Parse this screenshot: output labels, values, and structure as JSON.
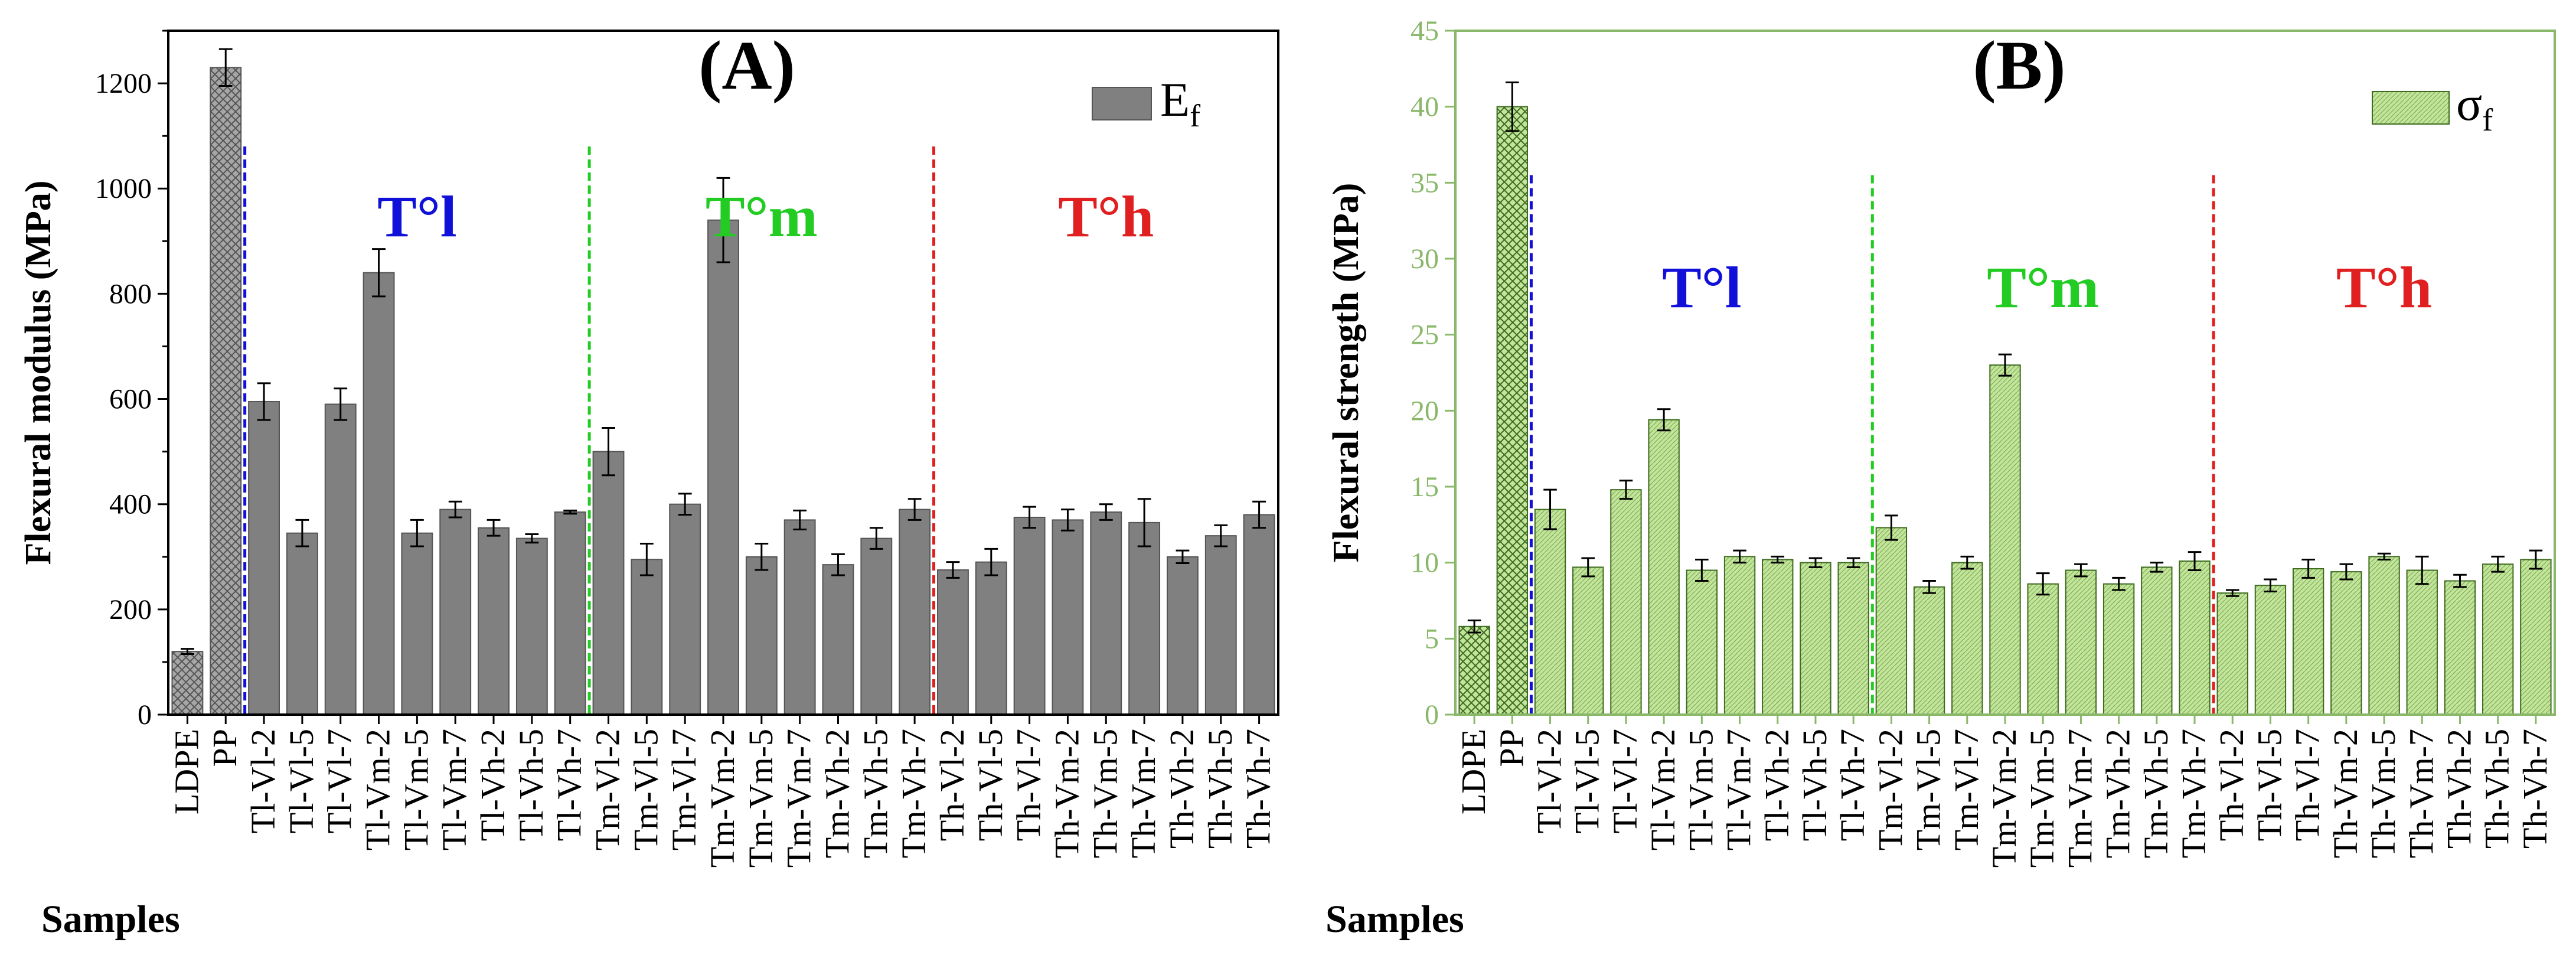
{
  "chart_data": [
    {
      "type": "bar",
      "panel": "(A)",
      "title": "(A)",
      "xlabel": "Samples",
      "ylabel": "Flexural modulus (MPa)",
      "ylim": [
        0,
        1300
      ],
      "yticks": [
        "0",
        "200",
        "400",
        "600",
        "800",
        "1000",
        "1200"
      ],
      "legend": {
        "label_main": "E",
        "label_sub": "f",
        "placement": "top-right"
      },
      "bar_color": "#808080",
      "hatched_bar_color": "#a6a6a6",
      "categories": [
        "LDPE",
        "PP",
        "Tl-Vl-2",
        "Tl-Vl-5",
        "Tl-Vl-7",
        "Tl-Vm-2",
        "Tl-Vm-5",
        "Tl-Vm-7",
        "Tl-Vh-2",
        "Tl-Vh-5",
        "Tl-Vh-7",
        "Tm-Vl-2",
        "Tm-Vl-5",
        "Tm-Vl-7",
        "Tm-Vm-2",
        "Tm-Vm-5",
        "Tm-Vm-7",
        "Tm-Vh-2",
        "Tm-Vh-5",
        "Tm-Vh-7",
        "Th-Vl-2",
        "Th-Vl-5",
        "Th-Vl-7",
        "Th-Vm-2",
        "Th-Vm-5",
        "Th-Vm-7",
        "Th-Vh-2",
        "Th-Vh-5",
        "Th-Vh-7"
      ],
      "values": [
        120,
        1230,
        595,
        345,
        590,
        840,
        345,
        390,
        355,
        335,
        385,
        500,
        295,
        400,
        940,
        300,
        370,
        285,
        335,
        390,
        275,
        290,
        375,
        370,
        385,
        365,
        300,
        340,
        380
      ],
      "errors": [
        5,
        35,
        35,
        25,
        30,
        45,
        25,
        15,
        15,
        8,
        3,
        45,
        30,
        20,
        80,
        25,
        18,
        20,
        20,
        20,
        15,
        25,
        20,
        20,
        15,
        45,
        12,
        20,
        25
      ],
      "hatched": [
        0,
        1
      ],
      "regions": [
        {
          "label": "T°l",
          "color": "#1010d8"
        },
        {
          "label": "T°m",
          "color": "#22cc22"
        },
        {
          "label": "T°h",
          "color": "#e02020"
        }
      ]
    },
    {
      "type": "bar",
      "panel": "(B)",
      "title": "(B)",
      "xlabel": "Samples",
      "ylabel": "Flexural strength (MPa)",
      "ylim": [
        0,
        45
      ],
      "yticks": [
        "0",
        "5",
        "10",
        "15",
        "20",
        "25",
        "30",
        "35",
        "40",
        "45"
      ],
      "legend": {
        "label_main": "σ",
        "label_sub": "f",
        "placement": "top-right"
      },
      "bar_color": "#c2e49b",
      "hatched_bar_color": "#c2e49b",
      "axis_color": "#8ab86a",
      "categories": [
        "LDPE",
        "PP",
        "Tl-Vl-2",
        "Tl-Vl-5",
        "Tl-Vl-7",
        "Tl-Vm-2",
        "Tl-Vm-5",
        "Tl-Vm-7",
        "Tl-Vh-2",
        "Tl-Vh-5",
        "Tl-Vh-7",
        "Tm-Vl-2",
        "Tm-Vl-5",
        "Tm-Vl-7",
        "Tm-Vm-2",
        "Tm-Vm-5",
        "Tm-Vm-7",
        "Tm-Vh-2",
        "Tm-Vh-5",
        "Tm-Vh-7",
        "Th-Vl-2",
        "Th-Vl-5",
        "Th-Vl-7",
        "Th-Vm-2",
        "Th-Vm-5",
        "Th-Vm-7",
        "Th-Vh-2",
        "Th-Vh-5",
        "Th-Vh-7"
      ],
      "values": [
        5.8,
        40.0,
        13.5,
        9.7,
        14.8,
        19.4,
        9.5,
        10.4,
        10.2,
        10.0,
        10.0,
        12.3,
        8.4,
        10.0,
        23.0,
        8.6,
        9.5,
        8.6,
        9.7,
        10.1,
        8.0,
        8.5,
        9.6,
        9.4,
        10.4,
        9.5,
        8.8,
        9.9,
        10.2
      ],
      "errors": [
        0.4,
        1.6,
        1.3,
        0.6,
        0.6,
        0.7,
        0.7,
        0.4,
        0.2,
        0.3,
        0.3,
        0.8,
        0.4,
        0.4,
        0.7,
        0.7,
        0.4,
        0.4,
        0.3,
        0.6,
        0.2,
        0.4,
        0.6,
        0.5,
        0.2,
        0.9,
        0.4,
        0.5,
        0.6
      ],
      "hatched": [
        0,
        1
      ],
      "regions": [
        {
          "label": "T°l",
          "color": "#1010d8"
        },
        {
          "label": "T°m",
          "color": "#22cc22"
        },
        {
          "label": "T°h",
          "color": "#e02020"
        }
      ]
    }
  ]
}
